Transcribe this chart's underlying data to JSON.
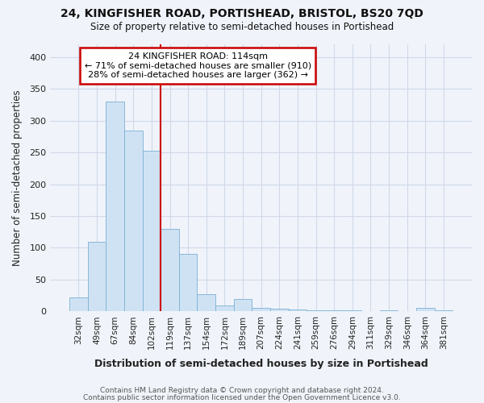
{
  "title1": "24, KINGFISHER ROAD, PORTISHEAD, BRISTOL, BS20 7QD",
  "title2": "Size of property relative to semi-detached houses in Portishead",
  "xlabel": "Distribution of semi-detached houses by size in Portishead",
  "ylabel": "Number of semi-detached properties",
  "categories": [
    "32sqm",
    "49sqm",
    "67sqm",
    "84sqm",
    "102sqm",
    "119sqm",
    "137sqm",
    "154sqm",
    "172sqm",
    "189sqm",
    "207sqm",
    "224sqm",
    "241sqm",
    "259sqm",
    "276sqm",
    "294sqm",
    "311sqm",
    "329sqm",
    "346sqm",
    "364sqm",
    "381sqm"
  ],
  "values": [
    22,
    110,
    330,
    285,
    253,
    130,
    90,
    27,
    9,
    20,
    6,
    4,
    3,
    2,
    2,
    2,
    1,
    2,
    1,
    6,
    2
  ],
  "bar_color": "#cfe2f3",
  "bar_edge_color": "#7ab0d4",
  "red_line_index": 5,
  "annotation_line1": "24 KINGFISHER ROAD: 114sqm",
  "annotation_line2": "← 71% of semi-detached houses are smaller (910)",
  "annotation_line3": "28% of semi-detached houses are larger (362) →",
  "annotation_box_fc": "#ffffff",
  "annotation_box_ec": "#cc0000",
  "red_line_color": "#cc0000",
  "grid_color": "#d0d8e8",
  "bg_color": "#f0f4fa",
  "footer1": "Contains HM Land Registry data © Crown copyright and database right 2024.",
  "footer2": "Contains public sector information licensed under the Open Government Licence v3.0.",
  "ylim": [
    0,
    420
  ],
  "yticks": [
    0,
    50,
    100,
    150,
    200,
    250,
    300,
    350,
    400
  ],
  "figsize": [
    6.0,
    5.0
  ],
  "dpi": 100
}
